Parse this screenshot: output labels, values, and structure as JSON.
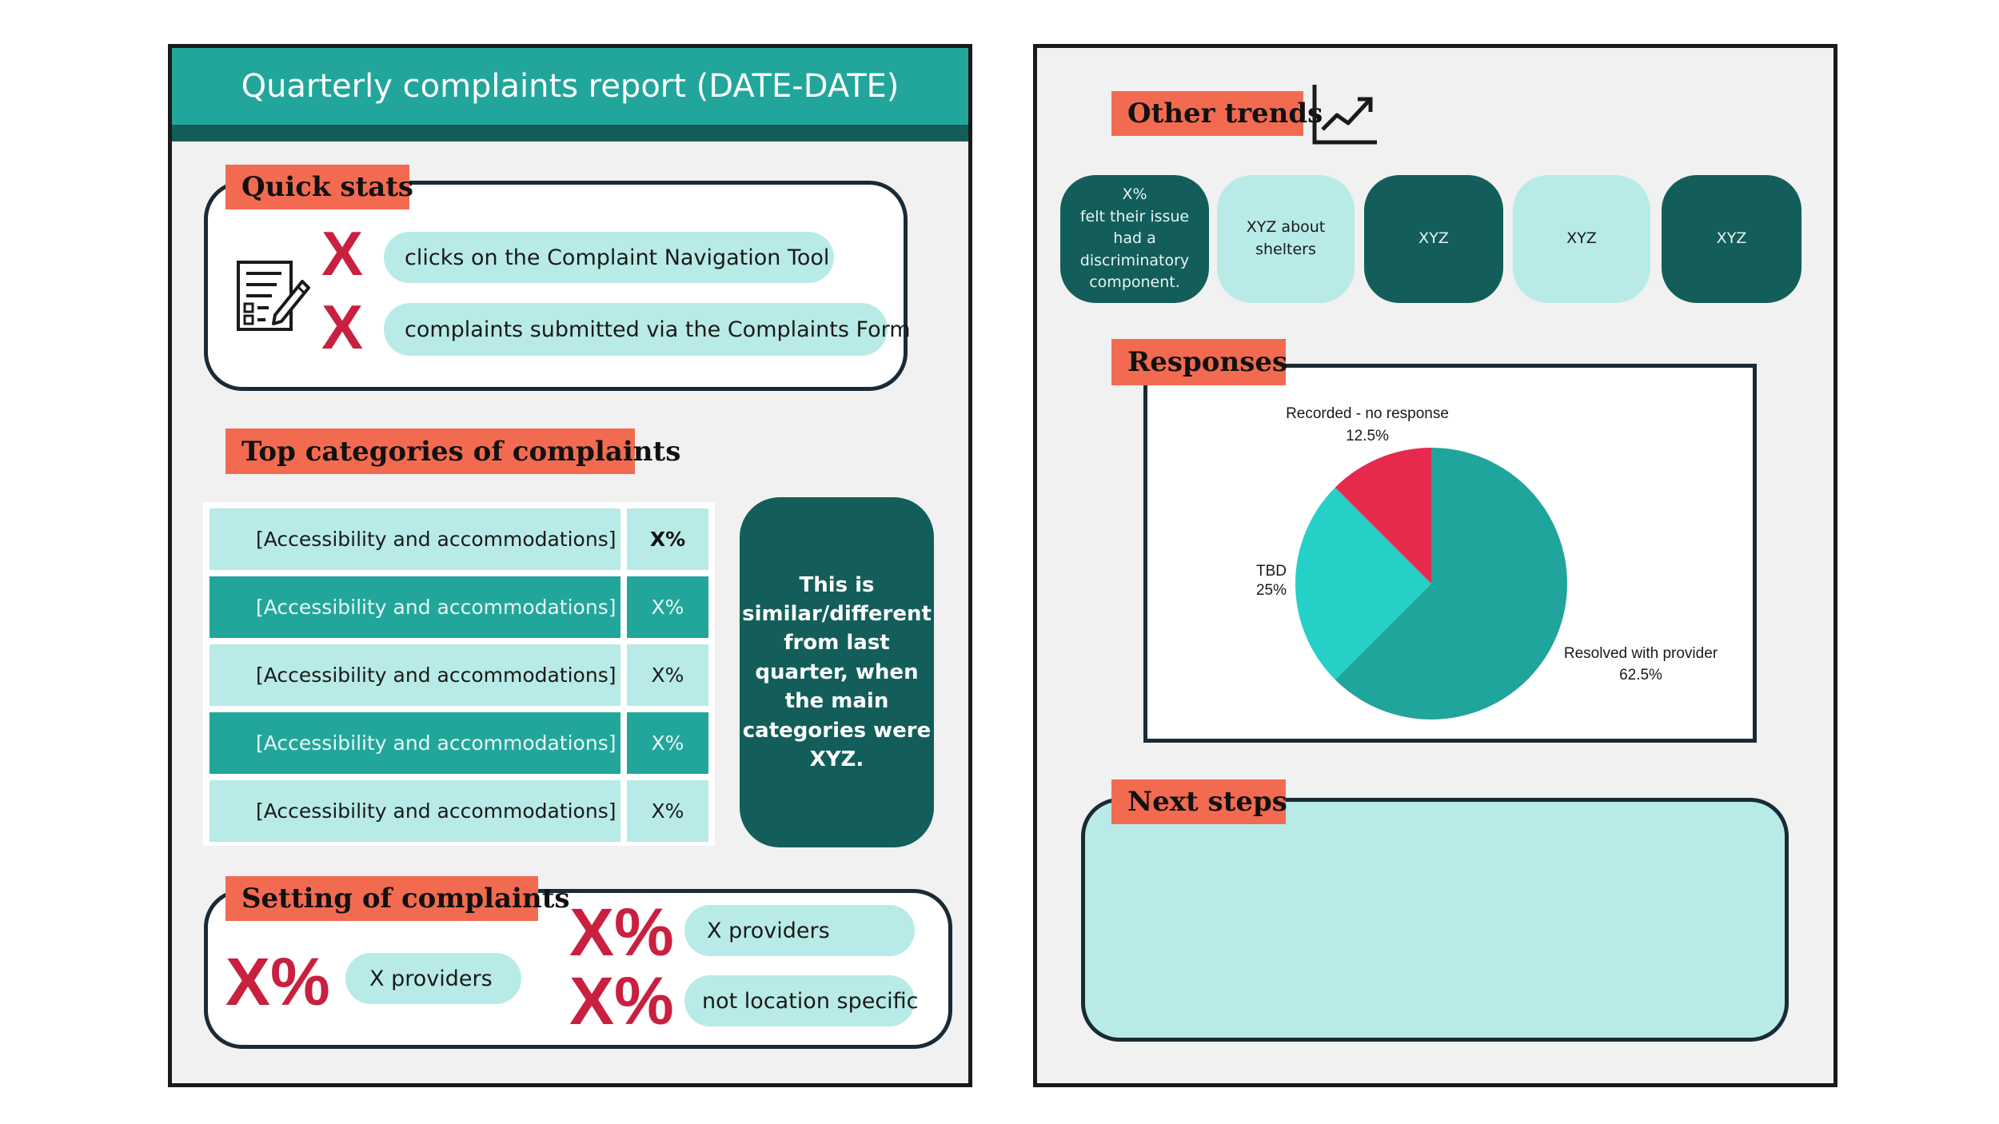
{
  "header": {
    "title": "Quarterly complaints report (DATE-DATE)"
  },
  "quick_stats": {
    "heading": "Quick stats",
    "icon": "form-edit-icon",
    "items": [
      {
        "value": "X",
        "label": "clicks on the Complaint Navigation Tool"
      },
      {
        "value": "X",
        "label": "complaints submitted via the Complaints Form"
      }
    ]
  },
  "top_categories": {
    "heading": "Top categories of complaints",
    "rows": [
      {
        "category": "[Accessibility and accommodations]",
        "value": "X%"
      },
      {
        "category": "[Accessibility and accommodations]",
        "value": "X%"
      },
      {
        "category": "[Accessibility and accommodations]",
        "value": "X%"
      },
      {
        "category": "[Accessibility and accommodations]",
        "value": "X%"
      },
      {
        "category": "[Accessibility and accommodations]",
        "value": "X%"
      }
    ],
    "comparison_note": "This is similar/different from last quarter, when the main categories were XYZ."
  },
  "setting": {
    "heading": "Setting of complaints",
    "items": [
      {
        "value": "X%",
        "label": "X providers"
      },
      {
        "value": "X%",
        "label": "X providers"
      },
      {
        "value": "X%",
        "label": "not location specific"
      }
    ]
  },
  "other_trends": {
    "heading": "Other trends",
    "icon": "trending-up-chart-icon",
    "cards": [
      {
        "text": "X%\nfelt their issue had a discriminatory component.",
        "style": "dark"
      },
      {
        "text": "XYZ about shelters",
        "style": "light"
      },
      {
        "text": "XYZ",
        "style": "dark"
      },
      {
        "text": "XYZ",
        "style": "light"
      },
      {
        "text": "XYZ",
        "style": "dark"
      }
    ]
  },
  "responses": {
    "heading": "Responses",
    "chart_data": {
      "type": "pie",
      "slices": [
        {
          "label": "Resolved with provider",
          "value": 62.5,
          "value_label": "62.5%",
          "color": "#1fa59b"
        },
        {
          "label": "TBD",
          "value": 25,
          "value_label": "25%",
          "color": "#25d0c7"
        },
        {
          "label": "Recorded - no response",
          "value": 12.5,
          "value_label": "12.5%",
          "color": "#e52a4d"
        }
      ]
    }
  },
  "next_steps": {
    "heading": "Next steps"
  },
  "colors": {
    "teal": "#22a69b",
    "dark_teal": "#135e5a",
    "mint": "#b8ebe7",
    "coral": "#f26b51",
    "crimson": "#c8203e"
  }
}
